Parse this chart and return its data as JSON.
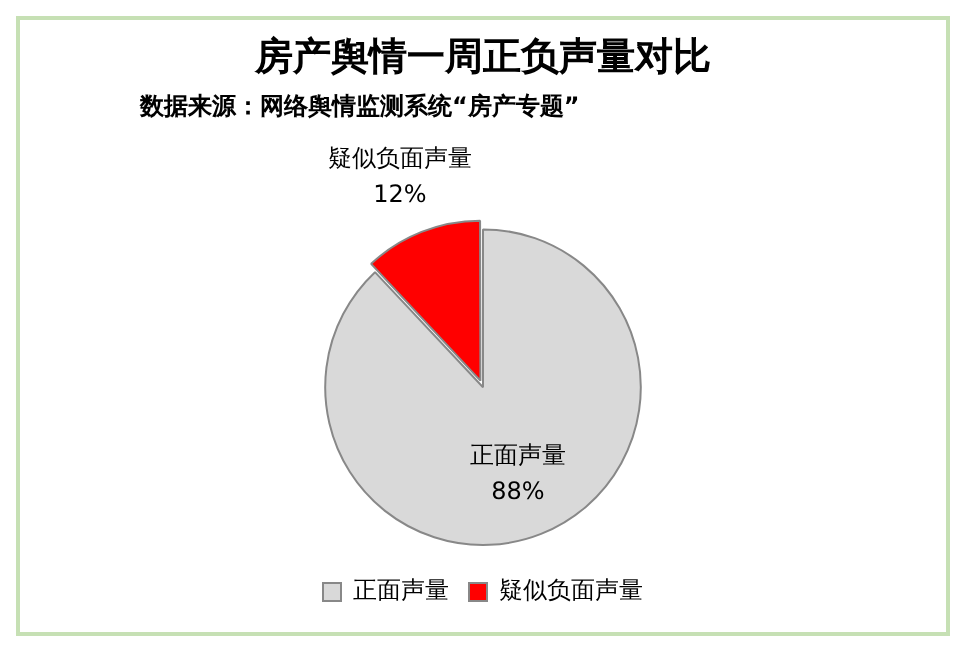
{
  "chart_data": {
    "type": "pie",
    "title": "房产舆情一周正负声量对比",
    "subtitle": "数据来源：网络舆情监测系统“房产专题”",
    "categories": [
      "正面声量",
      "疑似负面声量"
    ],
    "values": [
      88,
      12
    ],
    "colors": [
      "#d9d9d9",
      "#ff0000"
    ],
    "value_labels": [
      "88%",
      "12%"
    ],
    "legend": "bottom"
  }
}
